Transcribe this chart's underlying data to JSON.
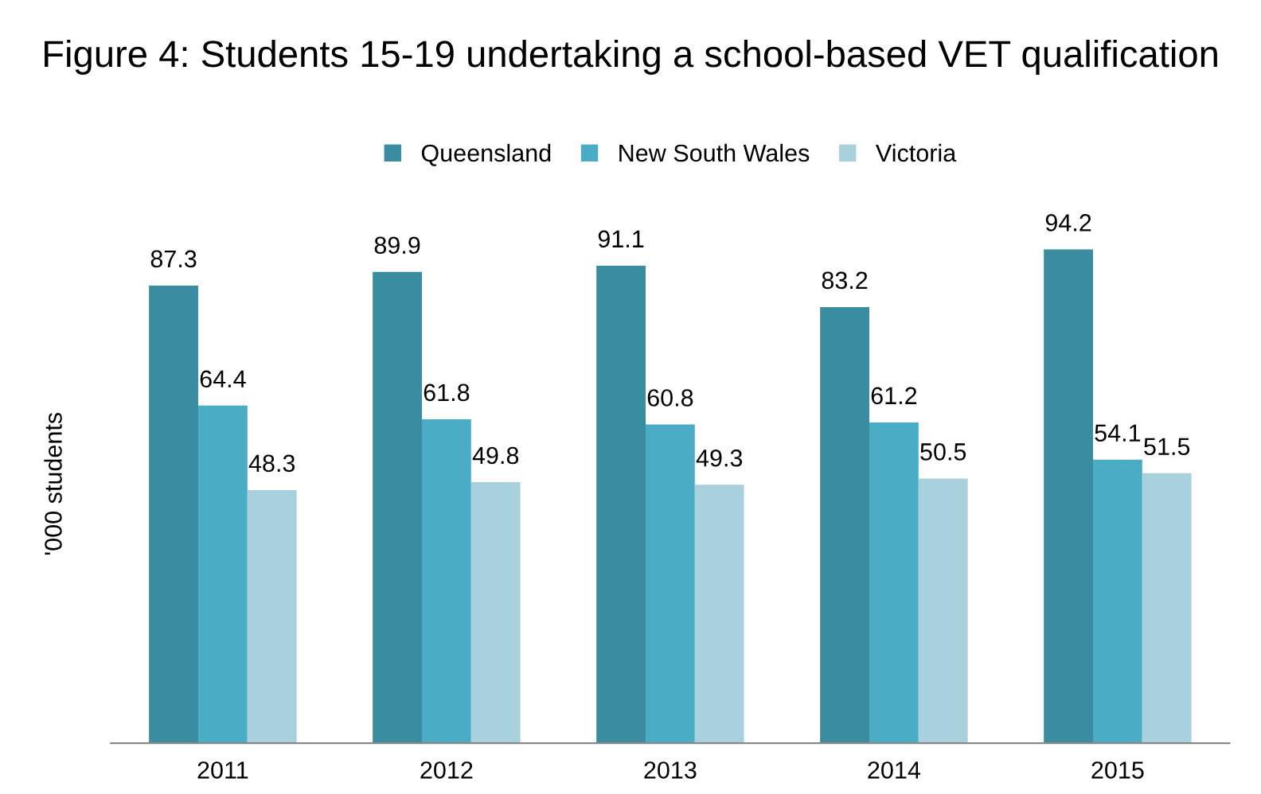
{
  "chart_data": {
    "type": "bar",
    "title": "Figure 4: Students 15-19 undertaking a school-based VET qualification",
    "ylabel": "'000 students",
    "categories": [
      "2011",
      "2012",
      "2013",
      "2014",
      "2015"
    ],
    "series": [
      {
        "name": "Queensland",
        "color": "#3a8ca1",
        "values": [
          87.3,
          89.9,
          91.1,
          83.2,
          94.2
        ]
      },
      {
        "name": "New South Wales",
        "color": "#4bacc6",
        "values": [
          64.4,
          61.8,
          60.8,
          61.2,
          54.1
        ]
      },
      {
        "name": "Victoria",
        "color": "#a9d0dd",
        "values": [
          48.3,
          49.8,
          49.3,
          50.5,
          51.5
        ]
      }
    ],
    "data_labels": true,
    "legend": "top",
    "grid": false
  }
}
